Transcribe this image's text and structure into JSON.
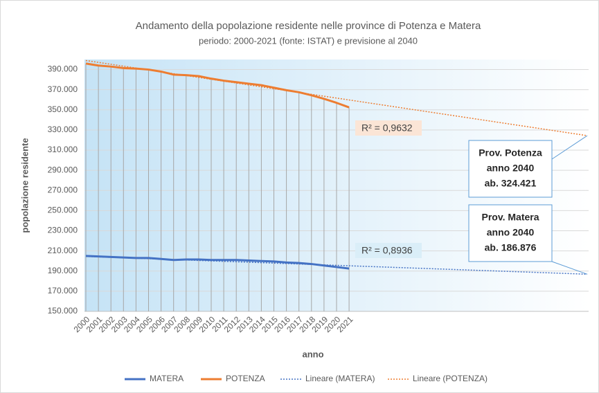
{
  "chart_data": {
    "type": "line",
    "title": "Andamento della popolazione  residente nelle province di Potenza e Matera",
    "subtitle": "periodo: 2000-2021 (fonte: ISTAT) e previsione al 2040",
    "x_label": "anno",
    "y_label": "popolazione residente",
    "x": [
      2000,
      2001,
      2002,
      2003,
      2004,
      2005,
      2006,
      2007,
      2008,
      2009,
      2010,
      2011,
      2012,
      2013,
      2014,
      2015,
      2016,
      2017,
      2018,
      2019,
      2020,
      2021
    ],
    "xlim": [
      2000,
      2040
    ],
    "xticks": [
      2000,
      2001,
      2002,
      2003,
      2004,
      2005,
      2006,
      2007,
      2008,
      2009,
      2010,
      2011,
      2012,
      2013,
      2014,
      2015,
      2016,
      2017,
      2018,
      2019,
      2020,
      2021
    ],
    "ylim": [
      150000,
      400000
    ],
    "yticks": [
      {
        "value": 150000,
        "label": "150.000"
      },
      {
        "value": 170000,
        "label": "170.000"
      },
      {
        "value": 190000,
        "label": "190.000"
      },
      {
        "value": 210000,
        "label": "210.000"
      },
      {
        "value": 230000,
        "label": "230.000"
      },
      {
        "value": 250000,
        "label": "250.000"
      },
      {
        "value": 270000,
        "label": "270.000"
      },
      {
        "value": 290000,
        "label": "290.000"
      },
      {
        "value": 310000,
        "label": "310.000"
      },
      {
        "value": 330000,
        "label": "330.000"
      },
      {
        "value": 350000,
        "label": "350.000"
      },
      {
        "value": 370000,
        "label": "370.000"
      },
      {
        "value": 390000,
        "label": "390.000"
      }
    ],
    "grid": true,
    "legend": "bottom",
    "series": [
      {
        "name": "MATERA",
        "color": "#4472c4",
        "style": "solid",
        "values": [
          205000,
          204500,
          204000,
          203500,
          203000,
          203000,
          202000,
          201000,
          201500,
          201500,
          201000,
          201000,
          201000,
          200500,
          200000,
          199500,
          198500,
          198000,
          197000,
          195500,
          194000,
          192500
        ]
      },
      {
        "name": "POTENZA",
        "color": "#ed7d31",
        "style": "solid",
        "values": [
          396000,
          394000,
          393000,
          391500,
          391000,
          390000,
          388000,
          385000,
          384500,
          383500,
          381000,
          379000,
          377500,
          376000,
          374500,
          372000,
          369500,
          367500,
          364500,
          361000,
          357000,
          352500
        ]
      },
      {
        "name": "Lineare (MATERA)",
        "color": "#4472c4",
        "style": "dotted",
        "x": [
          2000,
          2040
        ],
        "values": [
          204500,
          186876
        ]
      },
      {
        "name": "Lineare (POTENZA)",
        "color": "#ed7d31",
        "style": "dotted",
        "x": [
          2000,
          2040
        ],
        "values": [
          399000,
          324421
        ]
      }
    ],
    "annotations": [
      {
        "text": "R² = 0,9632"
      },
      {
        "text": "R² = 0,8936"
      },
      {
        "lines": [
          "Prov. Potenza",
          "anno 2040",
          "ab. 324.421"
        ]
      },
      {
        "lines": [
          "Prov. Matera",
          "anno 2040",
          "ab. 186.876"
        ]
      }
    ]
  }
}
